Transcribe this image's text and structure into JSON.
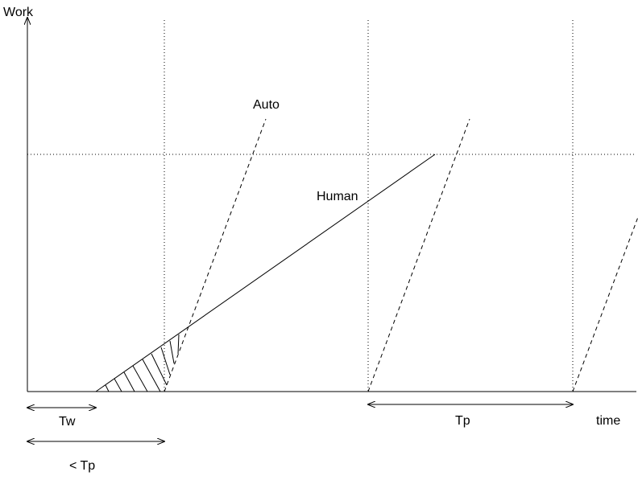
{
  "labels": {
    "y_axis": "Work",
    "x_axis": "time",
    "auto": "Auto",
    "human": "Human",
    "tw": "Tw",
    "lt_tp": "< Tp",
    "tp": "Tp"
  },
  "colors": {
    "ink": "#000000",
    "background": "#ffffff"
  }
}
